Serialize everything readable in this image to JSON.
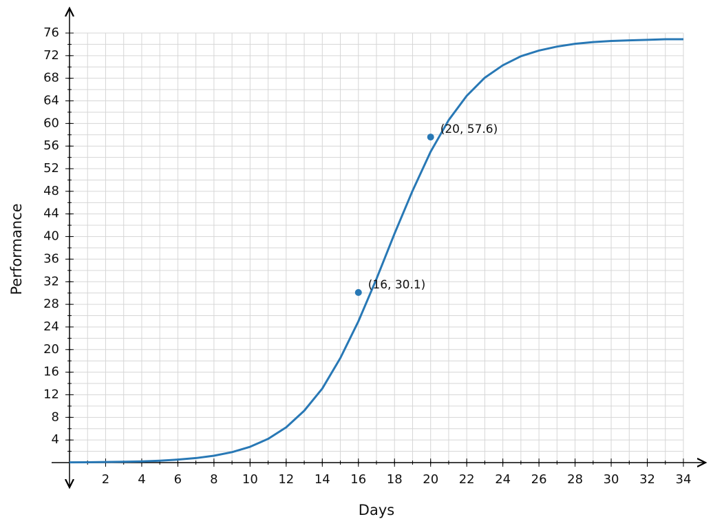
{
  "chart_data": {
    "type": "line",
    "xlabel": "Days",
    "ylabel": "Performance",
    "x": [
      0,
      1,
      2,
      3,
      4,
      5,
      6,
      7,
      8,
      9,
      10,
      11,
      12,
      13,
      14,
      15,
      16,
      17,
      18,
      19,
      20,
      21,
      22,
      23,
      24,
      25,
      26,
      27,
      28,
      29,
      30,
      31,
      32,
      33,
      34
    ],
    "series": [
      {
        "color": "#2878b5",
        "values": [
          0.04,
          0.06,
          0.1,
          0.15,
          0.22,
          0.34,
          0.53,
          0.8,
          1.22,
          1.85,
          2.8,
          4.2,
          6.24,
          9.18,
          13.1,
          18.5,
          25.0,
          32.5,
          40.5,
          48.1,
          55.0,
          60.6,
          64.9,
          68.1,
          70.3,
          71.9,
          72.9,
          73.6,
          74.1,
          74.4,
          74.6,
          74.7,
          74.8,
          74.9,
          74.9
        ]
      }
    ],
    "points": {
      "color": "#2878b5",
      "x": [
        16,
        20
      ],
      "values": [
        30.1,
        57.6
      ],
      "value_labels": [
        "(16, 30.1)",
        "(20, 57.6)"
      ]
    },
    "xlim": [
      0,
      34
    ],
    "ylim": [
      0,
      76
    ],
    "xticks": [
      2,
      4,
      6,
      8,
      10,
      12,
      14,
      16,
      18,
      20,
      22,
      24,
      26,
      28,
      30,
      32,
      34
    ],
    "yticks": [
      4,
      8,
      12,
      16,
      20,
      24,
      28,
      32,
      36,
      40,
      44,
      48,
      52,
      56,
      60,
      64,
      68,
      72,
      76
    ],
    "grid": true,
    "xgrid": [
      0,
      1,
      2,
      3,
      4,
      5,
      6,
      7,
      8,
      9,
      10,
      11,
      12,
      13,
      14,
      15,
      16,
      17,
      18,
      19,
      20,
      21,
      22,
      23,
      24,
      25,
      26,
      27,
      28,
      29,
      30,
      31,
      32,
      33,
      34
    ],
    "ygrid": [
      0,
      2,
      4,
      6,
      8,
      10,
      12,
      14,
      16,
      18,
      20,
      22,
      24,
      26,
      28,
      30,
      32,
      34,
      36,
      38,
      40,
      42,
      44,
      46,
      48,
      50,
      52,
      54,
      56,
      58,
      60,
      62,
      64,
      66,
      68,
      70,
      72,
      74,
      76
    ]
  }
}
